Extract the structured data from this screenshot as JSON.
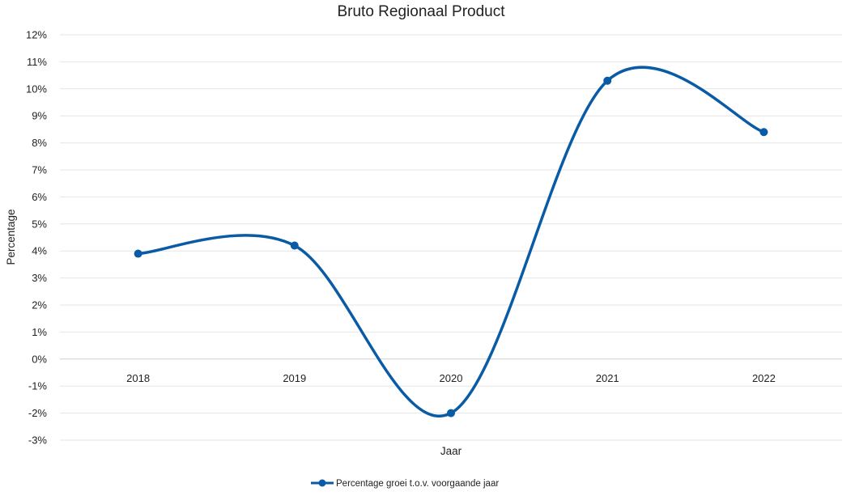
{
  "chart_data": {
    "type": "line",
    "title": "Bruto Regionaal Product",
    "xlabel": "Jaar",
    "ylabel": "Percentage",
    "categories": [
      "2018",
      "2019",
      "2020",
      "2021",
      "2022"
    ],
    "series": [
      {
        "name": "Percentage groei t.o.v. voorgaande jaar",
        "values": [
          3.9,
          4.2,
          -2.0,
          10.3,
          8.4
        ],
        "color": "#0a5ba6",
        "smooth": true
      }
    ],
    "ylim": [
      -3,
      12
    ],
    "yticks": [
      "12%",
      "11%",
      "10%",
      "9%",
      "8%",
      "7%",
      "6%",
      "5%",
      "4%",
      "3%",
      "2%",
      "1%",
      "0%",
      "-1%",
      "-2%",
      "-3%"
    ],
    "grid": true,
    "legend": "bottom-center"
  }
}
